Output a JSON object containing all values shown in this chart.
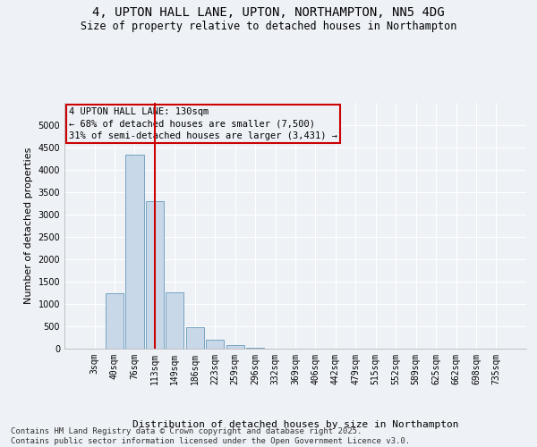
{
  "title": "4, UPTON HALL LANE, UPTON, NORTHAMPTON, NN5 4DG",
  "subtitle": "Size of property relative to detached houses in Northampton",
  "xlabel": "Distribution of detached houses by size in Northampton",
  "ylabel": "Number of detached properties",
  "categories": [
    "3sqm",
    "40sqm",
    "76sqm",
    "113sqm",
    "149sqm",
    "186sqm",
    "223sqm",
    "259sqm",
    "296sqm",
    "332sqm",
    "369sqm",
    "406sqm",
    "442sqm",
    "479sqm",
    "515sqm",
    "552sqm",
    "589sqm",
    "625sqm",
    "662sqm",
    "698sqm",
    "735sqm"
  ],
  "values": [
    0,
    1250,
    4350,
    3300,
    1270,
    490,
    210,
    75,
    25,
    0,
    0,
    0,
    0,
    0,
    0,
    0,
    0,
    0,
    0,
    0,
    0
  ],
  "bar_color": "#c8d8e8",
  "bar_edge_color": "#6699bb",
  "vline_x_index": 3,
  "vline_color": "#cc0000",
  "ylim": [
    0,
    5500
  ],
  "yticks": [
    0,
    500,
    1000,
    1500,
    2000,
    2500,
    3000,
    3500,
    4000,
    4500,
    5000
  ],
  "annotation_title": "4 UPTON HALL LANE: 130sqm",
  "annotation_line1": "← 68% of detached houses are smaller (7,500)",
  "annotation_line2": "31% of semi-detached houses are larger (3,431) →",
  "annotation_box_color": "#cc0000",
  "footer1": "Contains HM Land Registry data © Crown copyright and database right 2025.",
  "footer2": "Contains public sector information licensed under the Open Government Licence v3.0.",
  "bg_color": "#eef2f7",
  "grid_color": "#ffffff",
  "title_fontsize": 10,
  "subtitle_fontsize": 8.5,
  "axis_label_fontsize": 8,
  "tick_fontsize": 7,
  "annotation_fontsize": 7.5,
  "footer_fontsize": 6.5
}
